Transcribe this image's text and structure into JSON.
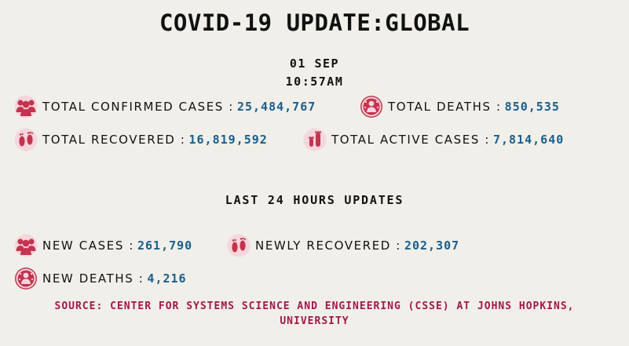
{
  "title": "COVID-19 UPDATE:GLOBAL",
  "date": "01 SEP",
  "time": "10:57AM",
  "totals": {
    "confirmed": {
      "label": "TOTAL CONFIRMED CASES :",
      "value": "25,484,767",
      "icon": "people-group-icon"
    },
    "deaths": {
      "label": "TOTAL DEATHS :",
      "value": "850,535",
      "icon": "virus-person-icon"
    },
    "recovered": {
      "label": "TOTAL RECOVERED :",
      "value": "16,819,592",
      "icon": "footprints-icon"
    },
    "active": {
      "label": "TOTAL ACTIVE CASES :",
      "value": "7,814,640",
      "icon": "test-tubes-icon"
    }
  },
  "last24": {
    "heading": "LAST 24 HOURS UPDATES",
    "new_cases": {
      "label": "NEW CASES :",
      "value": "261,790",
      "icon": "people-group-icon"
    },
    "newly_recovered": {
      "label": "NEWLY RECOVERED :",
      "value": "202,307",
      "icon": "footprints-icon"
    },
    "new_deaths": {
      "label": "NEW DEATHS :",
      "value": "4,216",
      "icon": "virus-person-icon"
    }
  },
  "source": {
    "line1": "SOURCE: CENTER FOR SYSTEMS SCIENCE AND ENGINEERING (CSSE) AT JOHNS HOPKINS,",
    "line2": "UNIVERSITY"
  },
  "colors": {
    "background": "#f0efe9",
    "value": "#1a5e8a",
    "icon": "#c4344f",
    "source": "#a3174a"
  }
}
